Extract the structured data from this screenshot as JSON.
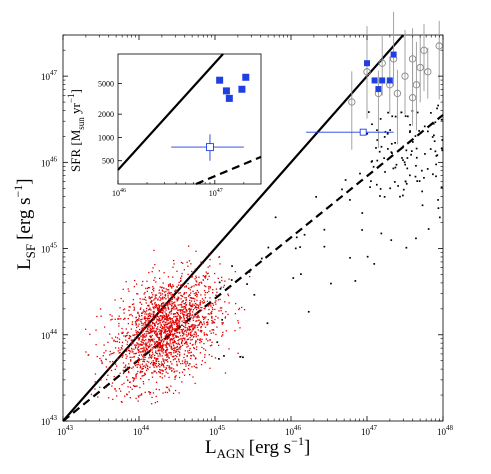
{
  "chart_data": [
    {
      "type": "scatter",
      "xlabel_main": "L",
      "xlabel_sub": "AGN",
      "xlabel_unit": "[erg s",
      "xlabel_exp": "−1",
      "xlabel_close": "]",
      "ylabel_main": "L",
      "ylabel_sub": "SF",
      "ylabel_unit": "[erg s",
      "ylabel_exp": "−1",
      "ylabel_close": "]",
      "log_scale": true,
      "xlim": [
        1e+43,
        1e+48
      ],
      "ylim": [
        1e+43,
        3e+47
      ],
      "xticks": [
        {
          "base": "10",
          "exp": "43",
          "v": 43
        },
        {
          "base": "10",
          "exp": "44",
          "v": 44
        },
        {
          "base": "10",
          "exp": "45",
          "v": 45
        },
        {
          "base": "10",
          "exp": "46",
          "v": 46
        },
        {
          "base": "10",
          "exp": "47",
          "v": 47
        },
        {
          "base": "10",
          "exp": "48",
          "v": 48
        }
      ],
      "yticks": [
        {
          "base": "10",
          "exp": "43",
          "v": 43
        },
        {
          "base": "10",
          "exp": "44",
          "v": 44
        },
        {
          "base": "10",
          "exp": "45",
          "v": 45
        },
        {
          "base": "10",
          "exp": "46",
          "v": 46
        },
        {
          "base": "10",
          "exp": "47",
          "v": 47
        }
      ],
      "lines": [
        {
          "style": "solid",
          "log_points": [
            [
              43,
              43
            ],
            [
              48,
              48
            ]
          ]
        },
        {
          "style": "dashed",
          "log_points": [
            [
              43,
              43
            ],
            [
              48,
              46.55
            ]
          ]
        }
      ],
      "series": [
        {
          "marker": "red-dots",
          "color": "#e00000",
          "count": 2000,
          "log_x_center": 44.35,
          "log_x_sigma": 0.35,
          "log_y_center": 44.05,
          "log_y_sigma": 0.3
        },
        {
          "marker": "black-dots",
          "color": "#000000",
          "count": 150,
          "log_x_range": [
            44.4,
            48
          ],
          "log_y_range": [
            43.5,
            46.6
          ]
        },
        {
          "marker": "blue-filled-squares",
          "color": "#1f3fe0",
          "log_points": [
            [
              47.0,
              47.15
            ],
            [
              47.1,
              46.95
            ],
            [
              47.15,
              46.85
            ],
            [
              47.2,
              46.95
            ],
            [
              47.3,
              46.95
            ],
            [
              47.35,
              47.25
            ]
          ]
        },
        {
          "marker": "blue-open-square",
          "color": "#1f3fe0",
          "log_points": [
            [
              46.95,
              46.35
            ]
          ],
          "log_x_err": [
            46.2,
            47.35
          ]
        },
        {
          "marker": "gray-open-circles",
          "color": "#888888",
          "log_points": [
            [
              46.8,
              46.7
            ],
            [
              47.0,
              47.05
            ],
            [
              47.15,
              46.8
            ],
            [
              47.2,
              47.15
            ],
            [
              47.3,
              46.9
            ],
            [
              47.35,
              47.2
            ],
            [
              47.5,
              47.0
            ],
            [
              47.6,
              47.2
            ],
            [
              47.65,
              46.9
            ],
            [
              47.7,
              47.1
            ],
            [
              47.75,
              47.3
            ],
            [
              47.8,
              47.05
            ],
            [
              47.95,
              47.35
            ],
            [
              47.6,
              46.75
            ],
            [
              47.4,
              46.8
            ]
          ]
        }
      ]
    },
    {
      "type": "scatter",
      "ylabel": "SFR [M",
      "ylabel_sub": "sun",
      "ylabel_unit": " yr",
      "ylabel_exp": "−1",
      "ylabel_close": "]",
      "log_scale": true,
      "xlim": [
        1e+46,
        3e+47
      ],
      "ylim": [
        250,
        12000
      ],
      "xticks": [
        {
          "base": "10",
          "exp": "46",
          "v": 46
        },
        {
          "base": "10",
          "exp": "47",
          "v": 47
        }
      ],
      "yticks": [
        {
          "label": "500",
          "v": 500
        },
        {
          "label": "1000",
          "v": 1000
        },
        {
          "label": "2000",
          "v": 2000
        },
        {
          "label": "5000",
          "v": 5000
        }
      ],
      "filled_squares": [
        [
          47.05,
          5500
        ],
        [
          47.12,
          4000
        ],
        [
          47.15,
          3200
        ],
        [
          47.28,
          4200
        ],
        [
          47.32,
          6000
        ]
      ],
      "open_square": {
        "x": 46.95,
        "y": 750,
        "x_err": [
          46.55,
          47.3
        ],
        "y_err": [
          500,
          1100
        ]
      }
    }
  ]
}
